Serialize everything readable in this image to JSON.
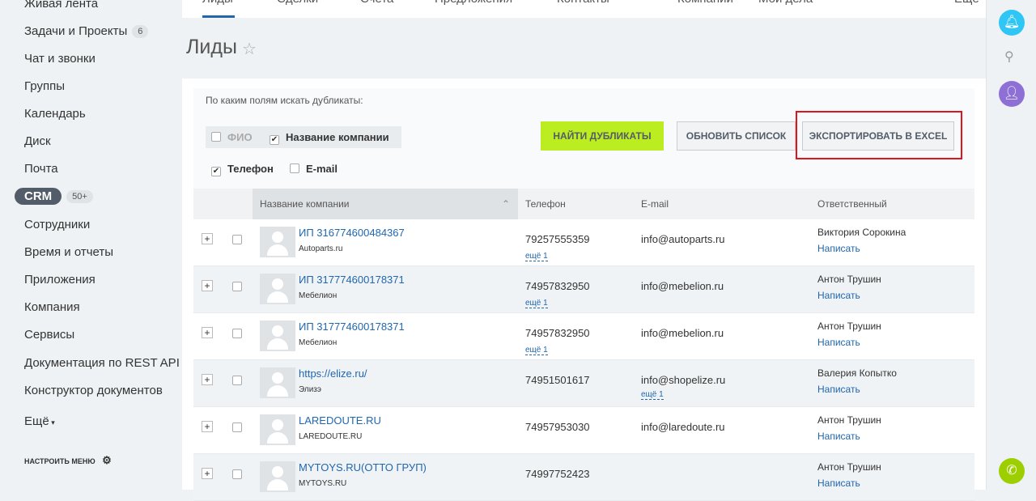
{
  "sidebar": {
    "items": [
      {
        "label": "Живая лента"
      },
      {
        "label": "Задачи и Проекты",
        "badge": "6"
      },
      {
        "label": "Чат и звонки"
      },
      {
        "label": "Группы"
      },
      {
        "label": "Календарь"
      },
      {
        "label": "Диск"
      },
      {
        "label": "Почта"
      },
      {
        "label": "CRM",
        "badge": "50+"
      },
      {
        "label": "Сотрудники"
      },
      {
        "label": "Время и отчеты"
      },
      {
        "label": "Приложения"
      },
      {
        "label": "Компания"
      },
      {
        "label": "Сервисы"
      },
      {
        "label": "Документация по REST API"
      },
      {
        "label": "Конструктор документов"
      },
      {
        "label": "Ещё"
      }
    ],
    "configure": "НАСТРОИТЬ МЕНЮ"
  },
  "tabs": [
    "Лиды",
    "Сделки",
    "Счета",
    "Предложения",
    "Контакты",
    "Компании",
    "Мои дела",
    "Ещё"
  ],
  "page_title": "Лиды",
  "filter": {
    "prompt": "По каким полям искать дубликаты:",
    "fields": [
      {
        "label": "ФИО",
        "checked": false
      },
      {
        "label": "Название компании",
        "checked": true
      },
      {
        "label": "Телефон",
        "checked": true
      },
      {
        "label": "E-mail",
        "checked": false
      }
    ]
  },
  "buttons": {
    "find": "НАЙТИ ДУБЛИКАТЫ",
    "refresh": "ОБНОВИТЬ СПИСОК",
    "export": "ЭКСПОРТИРОВАТЬ В EXCEL"
  },
  "colors": {
    "accent": "#bbed21",
    "highlight": "#e0141d",
    "link": "#2067b0"
  },
  "table": {
    "headers": [
      "Название компании",
      "Телефон",
      "E-mail",
      "Ответственный"
    ],
    "rows": [
      {
        "name": "ИП 316774600484367",
        "sub": "Autoparts.ru",
        "phone": "79257555359",
        "phone_more": "ещё 1",
        "email": "info@autoparts.ru",
        "email_more": "",
        "resp": "Виктория Сорокина",
        "action": "Написать"
      },
      {
        "name": "ИП 317774600178371",
        "sub": "Мебелион",
        "phone": "74957832950",
        "phone_more": "ещё 1",
        "email": "info@mebelion.ru",
        "email_more": "",
        "resp": "Антон Трушин",
        "action": "Написать"
      },
      {
        "name": "ИП 317774600178371",
        "sub": "Мебелион",
        "phone": "74957832950",
        "phone_more": "ещё 1",
        "email": "info@mebelion.ru",
        "email_more": "",
        "resp": "Антон Трушин",
        "action": "Написать"
      },
      {
        "name": "https://elize.ru/",
        "sub": "Элизэ",
        "phone": "74951501617",
        "phone_more": "",
        "email": "info@shopelize.ru",
        "email_more": "ещё 1",
        "resp": "Валерия Копытко",
        "action": "Написать"
      },
      {
        "name": "LAREDOUTE.RU",
        "sub": "LAREDOUTE.RU",
        "phone": "74957953030",
        "phone_more": "",
        "email": "info@laredoute.ru",
        "email_more": "",
        "resp": "Антон Трушин",
        "action": "Написать"
      },
      {
        "name": "MYTOYS.RU(ОТТО ГРУП)",
        "sub": "MYTOYS.RU",
        "phone": "74997752423",
        "phone_more": "",
        "email": "",
        "email_more": "",
        "resp": "Антон Трушин",
        "action": "Написать"
      }
    ]
  }
}
